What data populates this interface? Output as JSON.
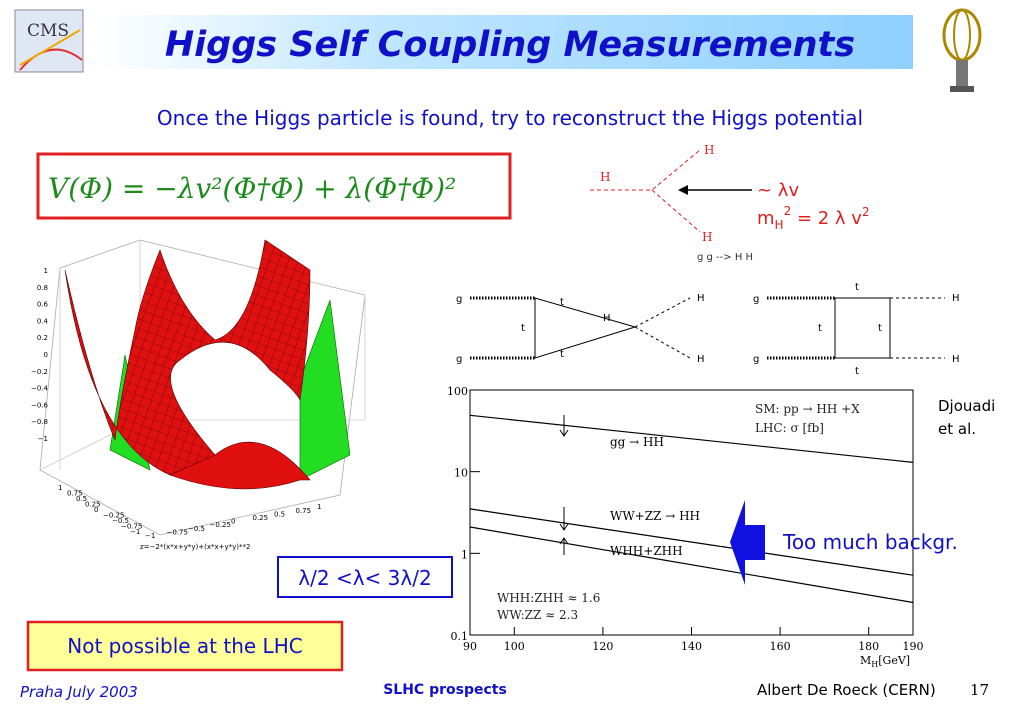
{
  "header": {
    "title": "Higgs Self Coupling Measurements",
    "logo": "CMS"
  },
  "subtitle": "Once the Higgs particle is found, try to reconstruct the Higgs potential",
  "formula": "V(Φ) = −λv²(Φ†Φ) + λ(Φ†Φ)²",
  "vertex": {
    "labels": [
      "H",
      "H",
      "H"
    ],
    "coupling": "~ λv",
    "mass_relation": [
      "m",
      "H",
      "2",
      " = 2 λ v",
      "2"
    ],
    "process": "g g --> H H"
  },
  "diagrams": {
    "triangle": [
      "g",
      "g",
      "t",
      "t",
      "t",
      "H",
      "H",
      "H"
    ],
    "box": [
      "g",
      "g",
      "t",
      "t",
      "t",
      "t",
      "H",
      "H"
    ]
  },
  "surface": {
    "z_ticks": [
      "1",
      "0.8",
      "0.6",
      "0.4",
      "0.2",
      "0",
      "−0.2",
      "−0.4",
      "−0.6",
      "−0.8",
      "−1"
    ],
    "y_ticks": [
      "1",
      "0.75",
      "0.5",
      "0.25",
      "0",
      "−0.25",
      "−0.5",
      "−0.75",
      "−1"
    ],
    "x_ticks": [
      "−1",
      "−0.75",
      "−0.5",
      "−0.25",
      "0",
      "0.25",
      "0.5",
      "0.75",
      "1"
    ],
    "formula": "z=−2*(x*x+y*y)+(x*x+y*y)**2"
  },
  "chart_data": {
    "type": "line",
    "log_y": true,
    "xlim": [
      90,
      190
    ],
    "ylim": [
      0.1,
      100
    ],
    "xticks": [
      90,
      100,
      120,
      140,
      160,
      180,
      190
    ],
    "yticks": [
      0.1,
      1,
      10,
      100
    ],
    "x_label": [
      "M",
      "H",
      "[GeV]"
    ],
    "annotations": [
      "SM: pp → HH +X",
      "LHC: σ [fb]",
      "WHH:ZHH ≈ 1.6",
      "WW:ZZ ≈ 2.3"
    ],
    "series": [
      {
        "name": "gg → HH",
        "color": "#000000",
        "x": [
          90,
          190
        ],
        "values": [
          49,
          13
        ]
      },
      {
        "name": "WW+ZZ → HH",
        "color": "#000000",
        "x": [
          90,
          190
        ],
        "values": [
          3.5,
          0.54
        ]
      },
      {
        "name": "WHH+ZHH",
        "color": "#000000",
        "x": [
          90,
          190
        ],
        "values": [
          2.1,
          0.25
        ]
      }
    ]
  },
  "citation": [
    "Djouadi",
    "et al."
  ],
  "arrow_note": "Too much backgr.",
  "lambda_range": "λ/2 <λ< 3λ/2",
  "conclusion": "Not possible at the LHC",
  "footer": {
    "place": "Praha July 2003",
    "topic": "SLHC prospects",
    "author": "Albert De Roeck (CERN)",
    "page": "17"
  }
}
